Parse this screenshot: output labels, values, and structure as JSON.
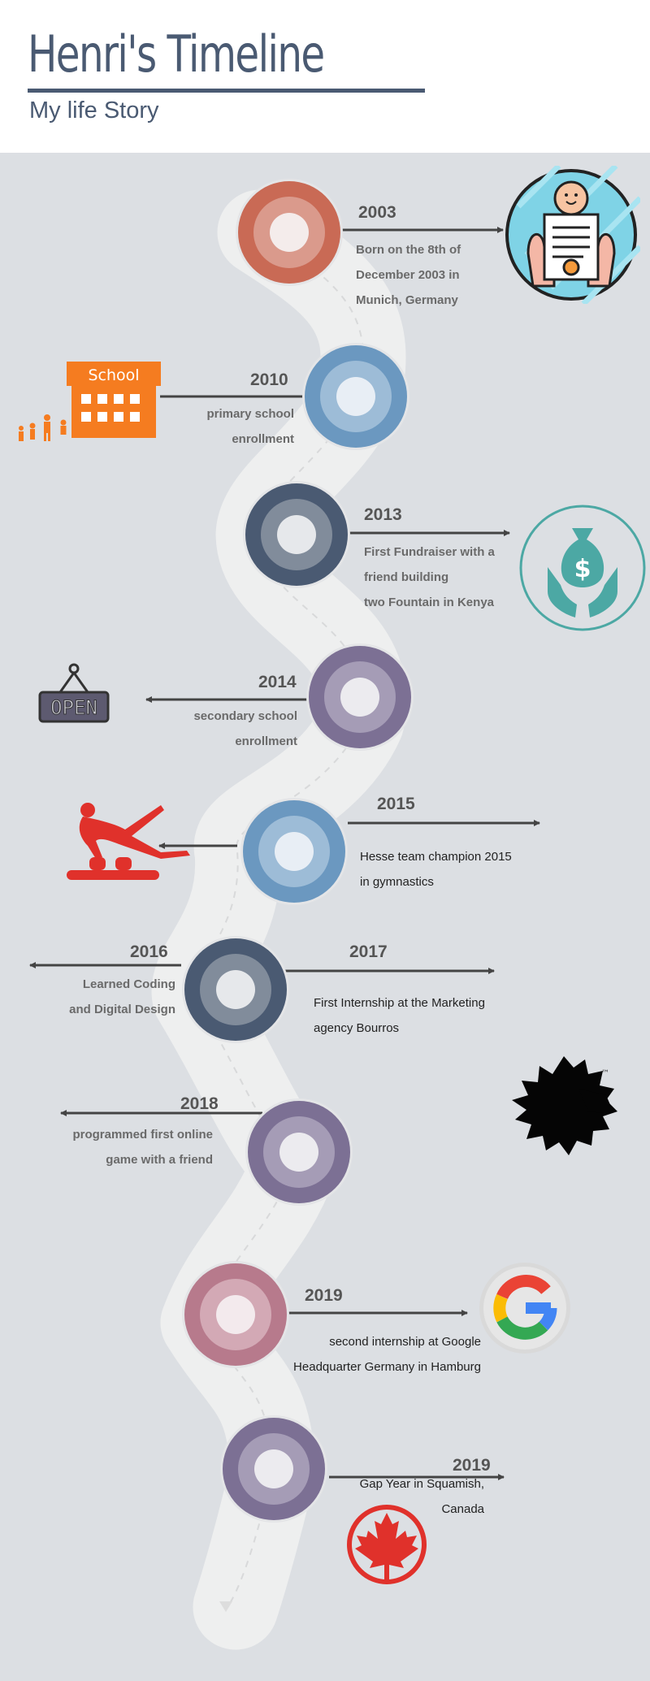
{
  "header": {
    "title": "Henri's Timeline",
    "subtitle": "My life Story"
  },
  "events": [
    {
      "year": "2003",
      "lines": [
        "Born on the 8th of",
        "December 2003 in",
        "Munich, Germany"
      ],
      "icon": "baby-certificate-icon",
      "ring": "#c96a55"
    },
    {
      "year": "2010",
      "lines": [
        "primary school",
        "enrollment"
      ],
      "icon": "school-icon",
      "icon_text": "School",
      "ring": "#6b98c0"
    },
    {
      "year": "2013",
      "lines": [
        "First Fundraiser with a",
        "friend building",
        "two Fountain in Kenya"
      ],
      "icon": "money-bag-hands-icon",
      "ring": "#4a5a72"
    },
    {
      "year": "2014",
      "lines": [
        "secondary school",
        "enrollment"
      ],
      "icon": "open-sign-icon",
      "icon_text": "OPEN",
      "ring": "#7c7094"
    },
    {
      "year": "2015",
      "lines": [
        "Hesse team champion 2015",
        "in  gymnastics"
      ],
      "icon": "gymnast-icon",
      "ring": "#6b98c0"
    },
    {
      "year": "2016",
      "lines": [
        "Learned Coding",
        "and Digital Design"
      ],
      "ring": "#4a5a72"
    },
    {
      "year": "2017",
      "lines": [
        "First Internship at the Marketing",
        "agency Bourros"
      ],
      "icon": "lion-logo-icon",
      "icon_text": "™",
      "ring": "#4a5a72"
    },
    {
      "year": "2018",
      "lines": [
        "programmed first online",
        "game with a friend"
      ],
      "ring": "#7c7094"
    },
    {
      "year": "2019",
      "lines": [
        "second internship at Google",
        "Headquarter Germany  in Hamburg"
      ],
      "icon": "google-logo-icon",
      "ring": "#b77a8c"
    },
    {
      "year": "2019",
      "lines": [
        "Gap Year in Squamish,",
        "Canada"
      ],
      "icon": "maple-leaf-icon",
      "ring": "#7c7094"
    }
  ]
}
